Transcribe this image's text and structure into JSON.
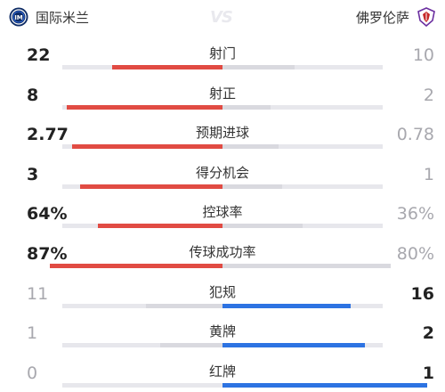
{
  "header": {
    "home_team": "国际米兰",
    "away_team": "佛罗伦萨",
    "vs_label": "VS",
    "home_badge_icon": "inter-milan-crest-icon",
    "away_badge_icon": "fiorentina-crest-icon"
  },
  "colors": {
    "home_accent": "#e14b43",
    "away_accent": "#2d73e2",
    "track": "#e7e7ec"
  },
  "stats": [
    {
      "label": "射门",
      "home": "22",
      "away": "10",
      "home_share": 0.69,
      "away_share": 0.45,
      "leader": "home"
    },
    {
      "label": "射正",
      "home": "8",
      "away": "2",
      "home_share": 0.97,
      "away_share": 0.3,
      "leader": "home"
    },
    {
      "label": "预期进球",
      "home": "2.77",
      "away": "0.78",
      "home_share": 0.94,
      "away_share": 0.35,
      "leader": "home"
    },
    {
      "label": "得分机会",
      "home": "3",
      "away": "1",
      "home_share": 0.89,
      "away_share": 0.37,
      "leader": "home"
    },
    {
      "label": "控球率",
      "home": "64%",
      "away": "36%",
      "home_share": 0.78,
      "away_share": 0.5,
      "leader": "home"
    },
    {
      "label": "传球成功率",
      "home": "87%",
      "away": "80%",
      "home_share": 1.08,
      "away_share": 1.05,
      "leader": "home"
    },
    {
      "label": "犯规",
      "home": "11",
      "away": "16",
      "home_share": 0.48,
      "away_share": 0.8,
      "leader": "away"
    },
    {
      "label": "黄牌",
      "home": "1",
      "away": "2",
      "home_share": 0.39,
      "away_share": 0.89,
      "leader": "away"
    },
    {
      "label": "红牌",
      "home": "0",
      "away": "1",
      "home_share": 0.0,
      "away_share": 1.28,
      "leader": "away"
    }
  ]
}
